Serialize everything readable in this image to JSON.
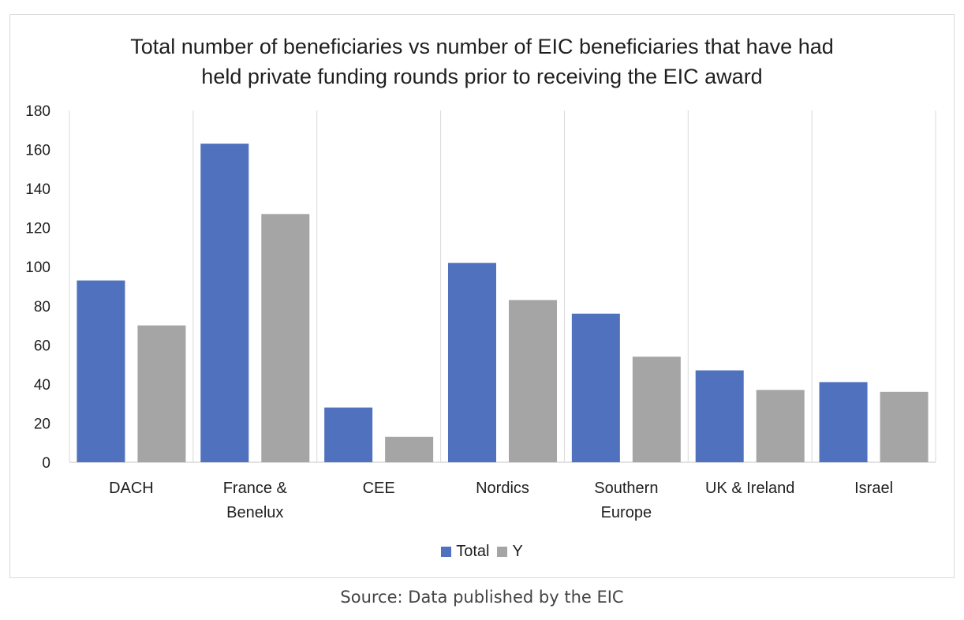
{
  "chart_data": {
    "type": "bar",
    "title": "Total number of beneficiaries vs number of EIC beneficiaries that have had\nheld private funding rounds prior to receiving the EIC award",
    "categories": [
      "DACH",
      "France &\nBenelux",
      "CEE",
      "Nordics",
      "Southern\nEurope",
      "UK & Ireland",
      "Israel"
    ],
    "series": [
      {
        "name": "Total",
        "color": "#4f71be",
        "values": [
          93,
          163,
          28,
          102,
          76,
          47,
          41
        ]
      },
      {
        "name": "Y",
        "color": "#a5a5a5",
        "values": [
          70,
          127,
          13,
          83,
          54,
          37,
          36
        ]
      }
    ],
    "ylim": [
      0,
      180
    ],
    "yticks": [
      0,
      20,
      40,
      60,
      80,
      100,
      120,
      140,
      160,
      180
    ],
    "grid": "vertical category separators",
    "legend": "bottom"
  },
  "legend": {
    "total": "Total",
    "y": "Y"
  },
  "source": "Source: Data published by the EIC"
}
